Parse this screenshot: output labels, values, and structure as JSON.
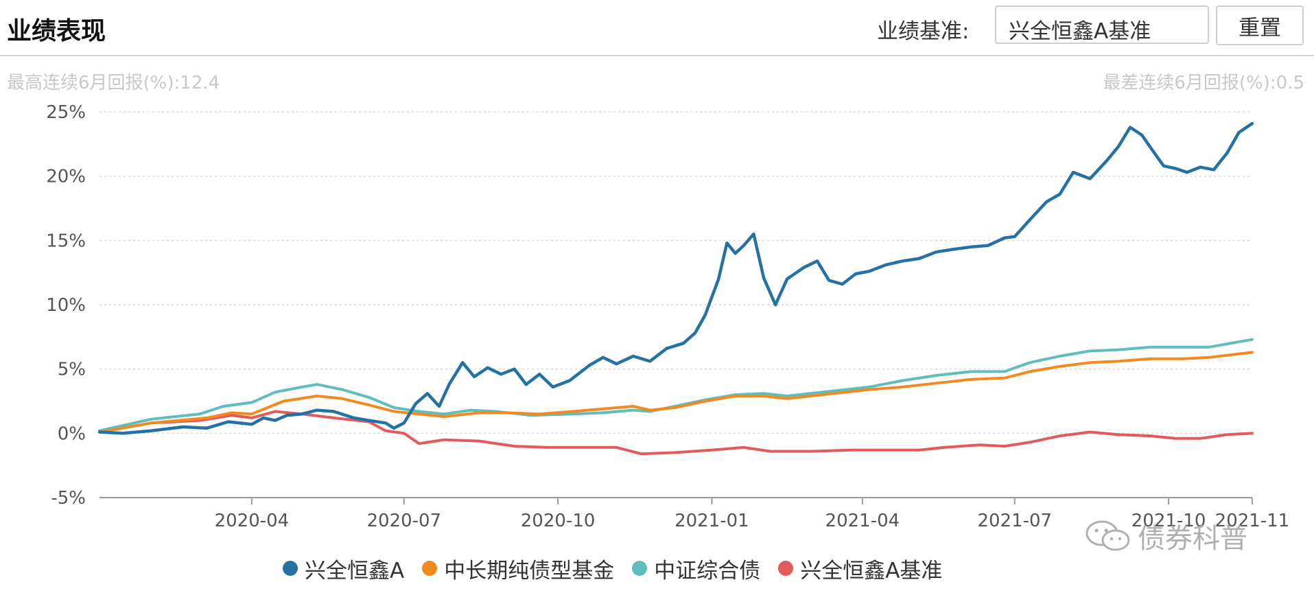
{
  "header": {
    "title": "业绩表现",
    "benchmark_label": "业绩基准:",
    "benchmark_value": "兴全恒鑫A基准",
    "reset_label": "重置"
  },
  "stats": {
    "best_6m": "最高连续6月回报(%):12.4",
    "worst_6m": "最差连续6月回报(%):0.5"
  },
  "watermark": {
    "text": "债券科普",
    "icon": "wechat-icon"
  },
  "chart_data": {
    "type": "line",
    "title": "",
    "xlabel": "",
    "ylabel": "",
    "x_range": [
      "2020-01-01",
      "2021-11-20"
    ],
    "ylim": [
      -5,
      25
    ],
    "y_ticks": [
      25,
      20,
      15,
      10,
      5,
      0,
      -5
    ],
    "y_tick_labels": [
      "25%",
      "20%",
      "15%",
      "10%",
      "5%",
      "0%",
      "-5%"
    ],
    "x_ticks": [
      "2020-04-01",
      "2020-07-01",
      "2020-10-01",
      "2021-01-01",
      "2021-04-01",
      "2021-07-01",
      "2021-10-01",
      "2021-11-20"
    ],
    "x_tick_labels": [
      "2020-04",
      "2020-07",
      "2020-10",
      "2021-01",
      "2021-04",
      "2021-07",
      "2021-10",
      "2021-11"
    ],
    "grid": true,
    "legend_position": "bottom",
    "series": [
      {
        "name": "兴全恒鑫A",
        "color": "#2471a3",
        "points": [
          [
            "2020-01-01",
            0.1
          ],
          [
            "2020-01-15",
            0.0
          ],
          [
            "2020-02-01",
            0.2
          ],
          [
            "2020-02-20",
            0.5
          ],
          [
            "2020-03-05",
            0.4
          ],
          [
            "2020-03-18",
            0.9
          ],
          [
            "2020-04-01",
            0.7
          ],
          [
            "2020-04-08",
            1.2
          ],
          [
            "2020-04-15",
            1.0
          ],
          [
            "2020-04-22",
            1.4
          ],
          [
            "2020-05-01",
            1.5
          ],
          [
            "2020-05-10",
            1.8
          ],
          [
            "2020-05-20",
            1.7
          ],
          [
            "2020-06-01",
            1.2
          ],
          [
            "2020-06-10",
            1.0
          ],
          [
            "2020-06-20",
            0.8
          ],
          [
            "2020-06-25",
            0.4
          ],
          [
            "2020-07-01",
            0.8
          ],
          [
            "2020-07-08",
            2.3
          ],
          [
            "2020-07-15",
            3.1
          ],
          [
            "2020-07-22",
            2.1
          ],
          [
            "2020-07-28",
            3.8
          ],
          [
            "2020-08-05",
            5.5
          ],
          [
            "2020-08-12",
            4.4
          ],
          [
            "2020-08-20",
            5.1
          ],
          [
            "2020-08-28",
            4.6
          ],
          [
            "2020-09-05",
            5.0
          ],
          [
            "2020-09-12",
            3.8
          ],
          [
            "2020-09-20",
            4.6
          ],
          [
            "2020-09-28",
            3.6
          ],
          [
            "2020-10-08",
            4.1
          ],
          [
            "2020-10-20",
            5.3
          ],
          [
            "2020-10-28",
            5.9
          ],
          [
            "2020-11-05",
            5.4
          ],
          [
            "2020-11-15",
            6.0
          ],
          [
            "2020-11-25",
            5.6
          ],
          [
            "2020-12-05",
            6.6
          ],
          [
            "2020-12-15",
            7.0
          ],
          [
            "2020-12-22",
            7.8
          ],
          [
            "2020-12-28",
            9.2
          ],
          [
            "2021-01-05",
            12.0
          ],
          [
            "2021-01-10",
            14.8
          ],
          [
            "2021-01-15",
            14.0
          ],
          [
            "2021-01-20",
            14.6
          ],
          [
            "2021-01-26",
            15.5
          ],
          [
            "2021-02-01",
            12.1
          ],
          [
            "2021-02-08",
            10.0
          ],
          [
            "2021-02-15",
            12.0
          ],
          [
            "2021-02-25",
            12.9
          ],
          [
            "2021-03-05",
            13.4
          ],
          [
            "2021-03-12",
            11.9
          ],
          [
            "2021-03-20",
            11.6
          ],
          [
            "2021-03-28",
            12.4
          ],
          [
            "2021-04-05",
            12.6
          ],
          [
            "2021-04-15",
            13.1
          ],
          [
            "2021-04-25",
            13.4
          ],
          [
            "2021-05-05",
            13.6
          ],
          [
            "2021-05-15",
            14.1
          ],
          [
            "2021-05-25",
            14.3
          ],
          [
            "2021-06-05",
            14.5
          ],
          [
            "2021-06-15",
            14.6
          ],
          [
            "2021-06-25",
            15.2
          ],
          [
            "2021-07-01",
            15.3
          ],
          [
            "2021-07-10",
            16.6
          ],
          [
            "2021-07-20",
            18.0
          ],
          [
            "2021-07-28",
            18.6
          ],
          [
            "2021-08-05",
            20.3
          ],
          [
            "2021-08-15",
            19.8
          ],
          [
            "2021-08-25",
            21.2
          ],
          [
            "2021-09-01",
            22.3
          ],
          [
            "2021-09-08",
            23.8
          ],
          [
            "2021-09-15",
            23.2
          ],
          [
            "2021-09-22",
            21.9
          ],
          [
            "2021-09-28",
            20.8
          ],
          [
            "2021-10-05",
            20.6
          ],
          [
            "2021-10-12",
            20.3
          ],
          [
            "2021-10-20",
            20.7
          ],
          [
            "2021-10-28",
            20.5
          ],
          [
            "2021-11-05",
            21.8
          ],
          [
            "2021-11-12",
            23.4
          ],
          [
            "2021-11-20",
            24.1
          ]
        ]
      },
      {
        "name": "中长期纯债型基金",
        "color": "#f28a1e",
        "points": [
          [
            "2020-01-01",
            0.1
          ],
          [
            "2020-02-01",
            0.8
          ],
          [
            "2020-03-05",
            1.2
          ],
          [
            "2020-03-20",
            1.6
          ],
          [
            "2020-04-01",
            1.5
          ],
          [
            "2020-04-20",
            2.5
          ],
          [
            "2020-05-10",
            2.9
          ],
          [
            "2020-05-25",
            2.7
          ],
          [
            "2020-06-10",
            2.2
          ],
          [
            "2020-06-25",
            1.7
          ],
          [
            "2020-07-10",
            1.5
          ],
          [
            "2020-07-25",
            1.3
          ],
          [
            "2020-08-15",
            1.6
          ],
          [
            "2020-09-01",
            1.6
          ],
          [
            "2020-09-20",
            1.5
          ],
          [
            "2020-10-10",
            1.7
          ],
          [
            "2020-10-28",
            1.9
          ],
          [
            "2020-11-15",
            2.1
          ],
          [
            "2020-11-25",
            1.8
          ],
          [
            "2020-12-10",
            2.0
          ],
          [
            "2020-12-28",
            2.5
          ],
          [
            "2021-01-15",
            2.9
          ],
          [
            "2021-02-01",
            2.9
          ],
          [
            "2021-02-15",
            2.7
          ],
          [
            "2021-03-15",
            3.1
          ],
          [
            "2021-04-05",
            3.4
          ],
          [
            "2021-04-25",
            3.6
          ],
          [
            "2021-05-15",
            3.9
          ],
          [
            "2021-06-05",
            4.2
          ],
          [
            "2021-06-25",
            4.3
          ],
          [
            "2021-07-10",
            4.8
          ],
          [
            "2021-07-28",
            5.2
          ],
          [
            "2021-08-15",
            5.5
          ],
          [
            "2021-09-01",
            5.6
          ],
          [
            "2021-09-20",
            5.8
          ],
          [
            "2021-10-10",
            5.8
          ],
          [
            "2021-10-25",
            5.9
          ],
          [
            "2021-11-20",
            6.3
          ]
        ]
      },
      {
        "name": "中证综合债",
        "color": "#5dbebc",
        "points": [
          [
            "2020-01-01",
            0.2
          ],
          [
            "2020-02-01",
            1.1
          ],
          [
            "2020-03-01",
            1.5
          ],
          [
            "2020-03-15",
            2.1
          ],
          [
            "2020-04-01",
            2.4
          ],
          [
            "2020-04-15",
            3.2
          ],
          [
            "2020-05-01",
            3.6
          ],
          [
            "2020-05-10",
            3.8
          ],
          [
            "2020-05-25",
            3.4
          ],
          [
            "2020-06-10",
            2.8
          ],
          [
            "2020-06-25",
            2.0
          ],
          [
            "2020-07-10",
            1.7
          ],
          [
            "2020-07-25",
            1.5
          ],
          [
            "2020-08-10",
            1.8
          ],
          [
            "2020-08-25",
            1.7
          ],
          [
            "2020-09-15",
            1.4
          ],
          [
            "2020-10-10",
            1.5
          ],
          [
            "2020-10-28",
            1.6
          ],
          [
            "2020-11-15",
            1.8
          ],
          [
            "2020-11-25",
            1.7
          ],
          [
            "2020-12-10",
            2.1
          ],
          [
            "2020-12-28",
            2.6
          ],
          [
            "2021-01-15",
            3.0
          ],
          [
            "2021-02-01",
            3.1
          ],
          [
            "2021-02-15",
            2.9
          ],
          [
            "2021-03-15",
            3.3
          ],
          [
            "2021-04-05",
            3.6
          ],
          [
            "2021-04-25",
            4.1
          ],
          [
            "2021-05-15",
            4.5
          ],
          [
            "2021-06-05",
            4.8
          ],
          [
            "2021-06-25",
            4.8
          ],
          [
            "2021-07-10",
            5.5
          ],
          [
            "2021-07-28",
            6.0
          ],
          [
            "2021-08-15",
            6.4
          ],
          [
            "2021-09-01",
            6.5
          ],
          [
            "2021-09-20",
            6.7
          ],
          [
            "2021-10-10",
            6.7
          ],
          [
            "2021-10-25",
            6.7
          ],
          [
            "2021-11-20",
            7.3
          ]
        ]
      },
      {
        "name": "兴全恒鑫A基准",
        "color": "#e35a5a",
        "points": [
          [
            "2020-01-01",
            0.1
          ],
          [
            "2020-02-01",
            0.8
          ],
          [
            "2020-03-01",
            1.0
          ],
          [
            "2020-03-20",
            1.4
          ],
          [
            "2020-04-01",
            1.2
          ],
          [
            "2020-04-15",
            1.7
          ],
          [
            "2020-05-01",
            1.5
          ],
          [
            "2020-05-20",
            1.2
          ],
          [
            "2020-06-10",
            0.9
          ],
          [
            "2020-06-20",
            0.2
          ],
          [
            "2020-07-01",
            0.0
          ],
          [
            "2020-07-10",
            -0.8
          ],
          [
            "2020-07-25",
            -0.5
          ],
          [
            "2020-08-15",
            -0.6
          ],
          [
            "2020-09-05",
            -1.0
          ],
          [
            "2020-09-25",
            -1.1
          ],
          [
            "2020-10-15",
            -1.1
          ],
          [
            "2020-11-05",
            -1.1
          ],
          [
            "2020-11-20",
            -1.6
          ],
          [
            "2020-12-10",
            -1.5
          ],
          [
            "2021-01-01",
            -1.3
          ],
          [
            "2021-01-20",
            -1.1
          ],
          [
            "2021-02-05",
            -1.4
          ],
          [
            "2021-03-01",
            -1.4
          ],
          [
            "2021-03-25",
            -1.3
          ],
          [
            "2021-04-15",
            -1.3
          ],
          [
            "2021-05-05",
            -1.3
          ],
          [
            "2021-05-20",
            -1.1
          ],
          [
            "2021-06-10",
            -0.9
          ],
          [
            "2021-06-25",
            -1.0
          ],
          [
            "2021-07-10",
            -0.7
          ],
          [
            "2021-07-28",
            -0.2
          ],
          [
            "2021-08-15",
            0.1
          ],
          [
            "2021-09-01",
            -0.1
          ],
          [
            "2021-09-20",
            -0.2
          ],
          [
            "2021-10-05",
            -0.4
          ],
          [
            "2021-10-20",
            -0.4
          ],
          [
            "2021-11-05",
            -0.1
          ],
          [
            "2021-11-20",
            0.0
          ]
        ]
      }
    ]
  }
}
